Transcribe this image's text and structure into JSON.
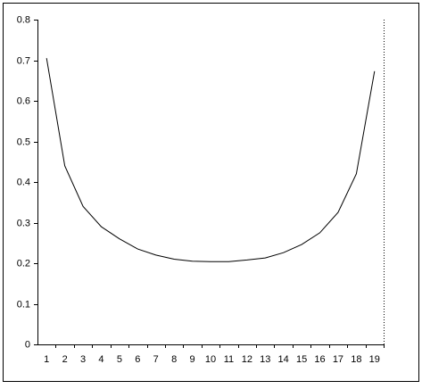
{
  "chart_data": {
    "type": "line",
    "categories": [
      "1",
      "2",
      "3",
      "4",
      "5",
      "6",
      "7",
      "8",
      "9",
      "10",
      "11",
      "12",
      "13",
      "14",
      "15",
      "16",
      "17",
      "18",
      "19"
    ],
    "values": [
      0.705,
      0.44,
      0.34,
      0.29,
      0.26,
      0.235,
      0.22,
      0.21,
      0.205,
      0.204,
      0.204,
      0.208,
      0.213,
      0.226,
      0.246,
      0.275,
      0.325,
      0.42,
      0.673
    ],
    "color": "#000000",
    "ylim": [
      0,
      0.8
    ],
    "yticks": [
      0,
      0.1,
      0.2,
      0.3,
      0.4,
      0.5,
      0.6,
      0.7,
      0.8
    ],
    "grid": false
  }
}
